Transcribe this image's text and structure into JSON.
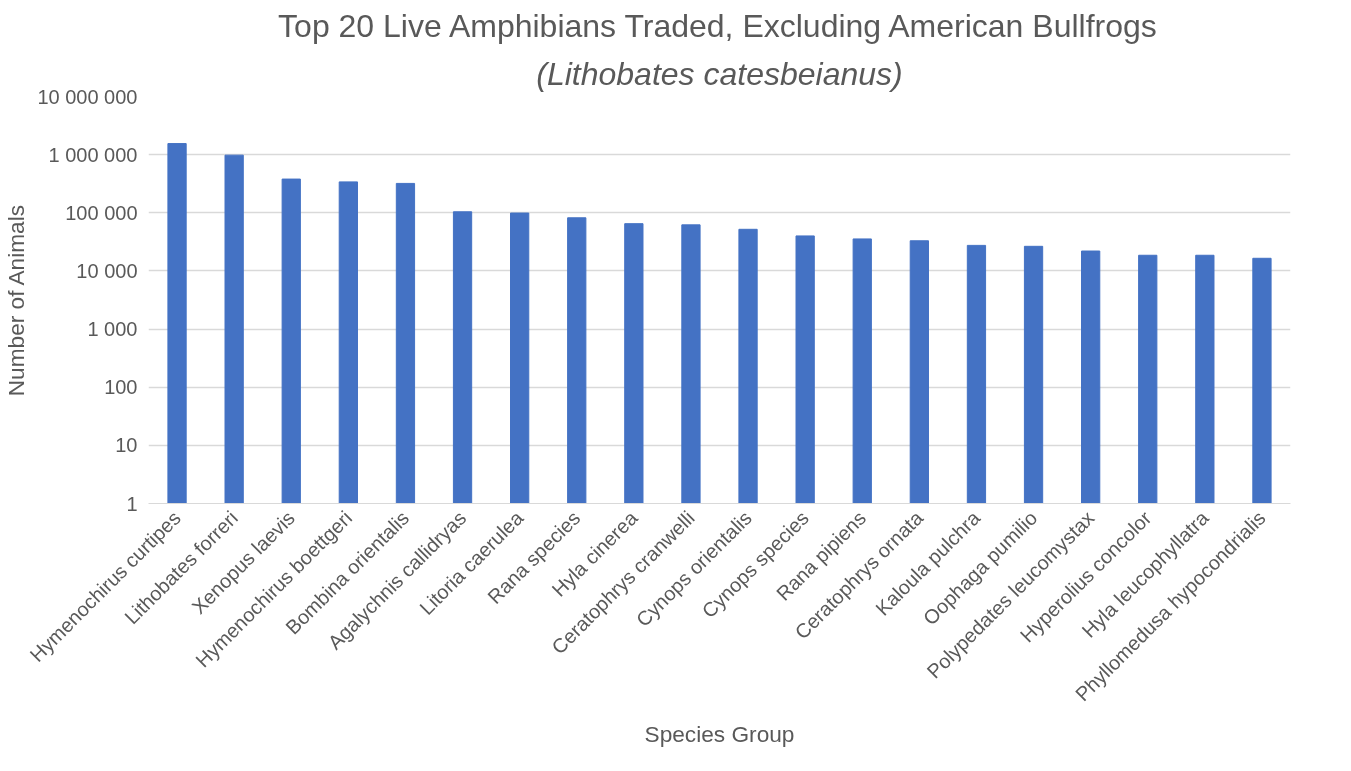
{
  "chart_data": {
    "type": "bar",
    "title": "Top 20 Live Amphibians Traded, Excluding American Bullfrogs",
    "subtitle": "(Lithobates catesbeianus)",
    "xlabel": "Species Group",
    "ylabel": "Number of Animals",
    "categories": [
      "Hymenochirus curtipes",
      "Lithobates forreri",
      "Xenopus laevis",
      "Hymenochirus boettgeri",
      "Bombina orientalis",
      "Agalychnis callidryas",
      "Litoria caerulea",
      "Rana species",
      "Hyla cinerea",
      "Ceratophrys cranwelli",
      "Cynops orientalis",
      "Cynops species",
      "Rana pipiens",
      "Ceratophrys ornata",
      "Kaloula pulchra",
      "Oophaga pumilio",
      "Polypedates leucomystax",
      "Hyperolius concolor",
      "Hyla leucophyllatra",
      "Phyllomedusa hypocondrialis"
    ],
    "values": [
      1550000,
      980000,
      380000,
      340000,
      320000,
      104000,
      99000,
      82000,
      65000,
      62000,
      52000,
      40000,
      35500,
      33000,
      27500,
      26500,
      22000,
      18600,
      18600,
      16500
    ],
    "color": "#4472c4",
    "log": true,
    "ylim": [
      1,
      10000000
    ],
    "yticks": [
      {
        "value": 1,
        "label": "1"
      },
      {
        "value": 10,
        "label": "10"
      },
      {
        "value": 100,
        "label": "100"
      },
      {
        "value": 1000,
        "label": "1 000"
      },
      {
        "value": 10000,
        "label": "10 000"
      },
      {
        "value": 100000,
        "label": "100 000"
      },
      {
        "value": 1000000,
        "label": "1 000 000"
      },
      {
        "value": 10000000,
        "label": "10 000 000"
      }
    ],
    "grid": "y"
  }
}
